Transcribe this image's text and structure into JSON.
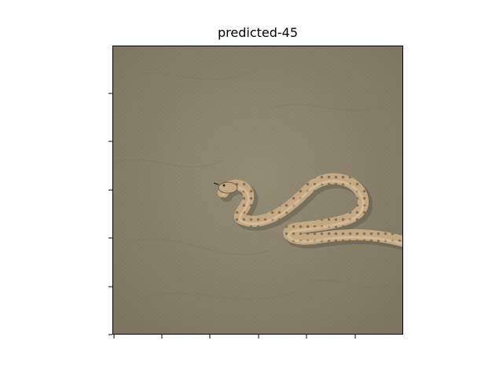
{
  "figure": {
    "title": "predicted-45"
  },
  "image": {
    "description_icon": "snake-on-sand-photo",
    "colors": {
      "sand": "#8c836d",
      "sand_light": "#9a917a",
      "snake_body": "#c4aa84",
      "snake_pattern": "#7a624a",
      "shadow": "#5e5546"
    }
  },
  "axes": {
    "x_ticks": [
      "",
      "",
      "",
      "",
      "",
      ""
    ],
    "y_ticks": [
      "",
      "",
      "",
      "",
      "",
      ""
    ]
  }
}
